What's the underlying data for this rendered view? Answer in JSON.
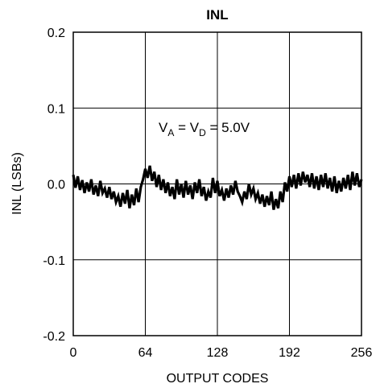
{
  "chart_data": {
    "type": "line",
    "title": "INL",
    "xlabel": "OUTPUT CODES",
    "ylabel": "INL (LSBs)",
    "xlim": [
      0,
      256
    ],
    "ylim": [
      -0.2,
      0.2
    ],
    "x_ticks": [
      0,
      64,
      128,
      192,
      256
    ],
    "x_tick_labels": [
      "0",
      "64",
      "128",
      "192",
      "256"
    ],
    "y_ticks": [
      0.2,
      0.1,
      0.0,
      -0.1,
      -0.2
    ],
    "y_tick_labels": [
      "0.2",
      "0.1",
      "0.0",
      "-0.1",
      "-0.2"
    ],
    "grid": true,
    "annotation": {
      "v1": "V",
      "sub1": "A",
      "eq1": " = V",
      "sub2": "D",
      "eq2": " = 5.0V"
    },
    "series": [
      {
        "x": [
          0,
          2,
          4,
          6,
          8,
          10,
          12,
          14,
          16,
          18,
          20,
          22,
          24,
          26,
          28,
          30,
          32,
          34,
          36,
          38,
          40,
          42,
          44,
          46,
          48,
          50,
          52,
          54,
          56,
          58,
          60,
          62,
          64,
          66,
          68,
          70,
          72,
          74,
          76,
          78,
          80,
          82,
          84,
          86,
          88,
          90,
          92,
          94,
          96,
          98,
          100,
          102,
          104,
          106,
          108,
          110,
          112,
          114,
          116,
          118,
          120,
          122,
          124,
          126,
          128,
          130,
          132,
          134,
          136,
          138,
          140,
          142,
          144,
          146,
          148,
          150,
          152,
          154,
          156,
          158,
          160,
          162,
          164,
          166,
          168,
          170,
          172,
          174,
          176,
          178,
          180,
          182,
          184,
          186,
          188,
          190,
          192,
          194,
          196,
          198,
          200,
          202,
          204,
          206,
          208,
          210,
          212,
          214,
          216,
          218,
          220,
          222,
          224,
          226,
          228,
          230,
          232,
          234,
          236,
          238,
          240,
          242,
          244,
          246,
          248,
          250,
          252,
          254,
          256
        ],
        "y": [
          0.012,
          -0.005,
          0.01,
          -0.008,
          0.005,
          -0.012,
          0.002,
          -0.01,
          0.006,
          -0.014,
          -0.002,
          -0.016,
          0.004,
          -0.012,
          -0.006,
          -0.018,
          -0.004,
          -0.02,
          -0.01,
          -0.024,
          -0.016,
          -0.03,
          -0.012,
          -0.026,
          -0.008,
          -0.032,
          -0.014,
          -0.028,
          -0.006,
          -0.024,
          -0.004,
          0.006,
          0.02,
          0.008,
          0.024,
          0.004,
          0.016,
          -0.004,
          0.012,
          -0.008,
          0.006,
          -0.012,
          0.002,
          -0.016,
          -0.004,
          -0.02,
          0.006,
          -0.014,
          0.0,
          -0.018,
          0.004,
          -0.014,
          -0.002,
          -0.02,
          0.002,
          -0.012,
          0.006,
          -0.016,
          -0.004,
          -0.022,
          -0.01,
          -0.018,
          0.008,
          -0.012,
          0.004,
          -0.016,
          -0.008,
          -0.022,
          -0.006,
          -0.018,
          -0.002,
          -0.014,
          0.004,
          -0.01,
          -0.016,
          -0.024,
          -0.01,
          -0.02,
          0.0,
          -0.014,
          -0.006,
          -0.02,
          -0.012,
          -0.026,
          -0.014,
          -0.03,
          -0.016,
          -0.028,
          -0.01,
          -0.034,
          -0.02,
          -0.032,
          -0.01,
          -0.024,
          0.002,
          -0.01,
          0.01,
          -0.004,
          0.012,
          -0.006,
          0.014,
          -0.002,
          0.016,
          0.002,
          0.012,
          -0.004,
          0.014,
          -0.006,
          0.01,
          -0.008,
          0.012,
          -0.004,
          0.014,
          -0.006,
          0.008,
          -0.01,
          0.01,
          -0.012,
          0.004,
          -0.01,
          0.008,
          -0.006,
          0.012,
          -0.008,
          0.016,
          -0.002,
          0.014,
          -0.004,
          0.006
        ]
      }
    ]
  }
}
